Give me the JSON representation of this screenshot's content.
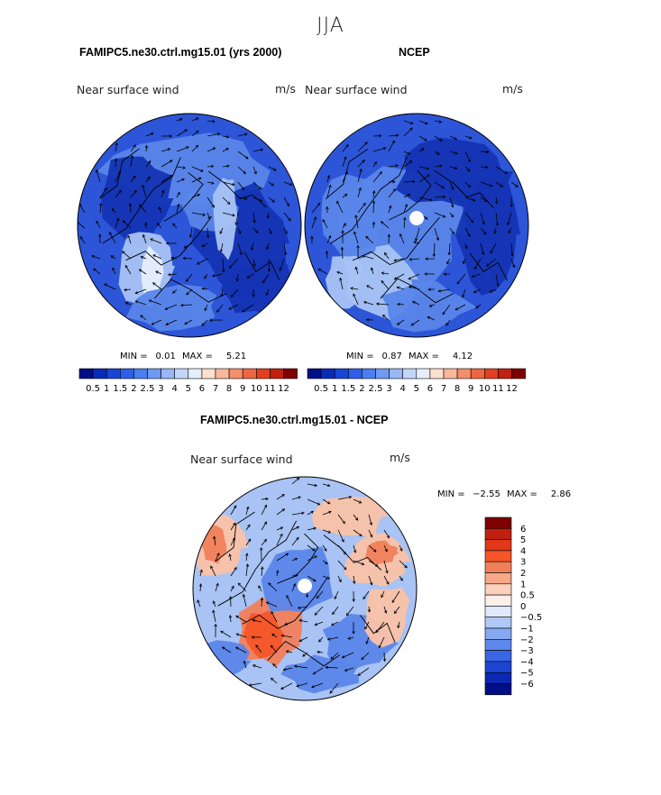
{
  "figure": {
    "season": "JJA"
  },
  "panels": [
    {
      "title": "FAMIPC5.ne30.ctrl.mg15.01 (yrs 2000)",
      "variable": "Near surface wind",
      "units": "m/s",
      "min_label": "MIN =",
      "min_value": "0.01",
      "max_label": "MAX =",
      "max_value": "5.21"
    },
    {
      "title": "NCEP",
      "variable": "Near surface wind",
      "units": "m/s",
      "min_label": "MIN =",
      "min_value": "0.87",
      "max_label": "MAX =",
      "max_value": "4.12"
    },
    {
      "title": "FAMIPC5.ne30.ctrl.mg15.01 - NCEP",
      "variable": "Near surface wind",
      "units": "m/s",
      "min_label": "MIN =",
      "min_value": "−2.55",
      "max_label": "MAX =",
      "max_value": "2.86"
    }
  ],
  "colorbars": {
    "absolute": {
      "labels": [
        "0.5",
        "1",
        "1.5",
        "2",
        "2.5",
        "3",
        "4",
        "5",
        "6",
        "7",
        "8",
        "9",
        "10",
        "11",
        "12"
      ],
      "colors": [
        "#000e87",
        "#0a2bb8",
        "#1745d6",
        "#2e5fe8",
        "#4b7ef0",
        "#6f9af2",
        "#98b7f5",
        "#c2d6f8",
        "#e6eefb",
        "#fde0d0",
        "#f9b89a",
        "#f48f6b",
        "#ec6640",
        "#e04020",
        "#c32010",
        "#7e0000"
      ]
    },
    "difference": {
      "labels": [
        "6",
        "5",
        "4",
        "3",
        "2",
        "1",
        "0.5",
        "0",
        "−0.5",
        "−1",
        "−2",
        "−3",
        "−4",
        "−5",
        "−6"
      ],
      "colors": [
        "#7e0000",
        "#c02010",
        "#e03818",
        "#f55528",
        "#f07f5a",
        "#f6a888",
        "#fbd0bc",
        "#fdf0ea",
        "#dfe9fb",
        "#b0c8f5",
        "#86a9f2",
        "#5d88ec",
        "#3866e4",
        "#1d45d2",
        "#0c27b0",
        "#000e87"
      ]
    }
  },
  "map_colors": {
    "deep": "#1434b4",
    "mid": "#2d55d8",
    "light": "#5a86ea",
    "pale": "#a8c3f4",
    "warm": "#f07f5a",
    "warmlight": "#f9c2a8",
    "hole": "#ffffff"
  },
  "map_style": "north-polar-stereographic with wind vectors and coastlines"
}
